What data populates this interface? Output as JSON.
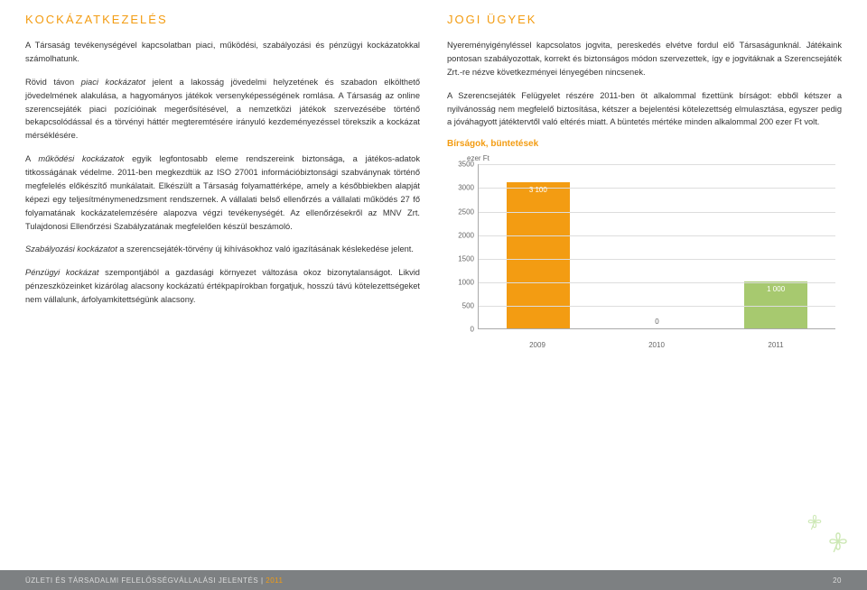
{
  "left": {
    "heading": "KOCKÁZATKEZELÉS",
    "p1a": "A Társaság tevékenységével kapcsolatban piaci, működési, szabályozási és pénzügyi kockázatokkal számolhatunk.",
    "p2a": "Rövid távon ",
    "p2em": "piaci kockázatot",
    "p2b": " jelent a lakosság jövedelmi helyzetének és szabadon elkölthető jövedelmének alakulása, a hagyományos játékok versenyképességének romlása. A Társaság az online szerencsejáték piaci pozícióinak megerősítésével, a nemzetközi játékok szervezésébe történő bekapcsolódással és a törvényi háttér megteremtésére irányuló kezdeményezéssel törekszik a kockázat mérséklésére.",
    "p3a": "A ",
    "p3em": "működési kockázatok",
    "p3b": " egyik legfontosabb eleme rendszereink biztonsága, a játékos-adatok titkosságának védelme. 2011-ben megkezdtük az ISO 27001 információbiztonsági szabványnak történő megfelelés előkészítő munkálatait. Elkészült a Társaság folyamattérképe, amely a későbbiekben alapját képezi egy teljesítménymenedzsment rendszernek. A vállalati belső ellenőrzés a vállalati működés 27 fő folyamatának kockázatelemzésére alapozva végzi tevékenységét. Az ellenőrzésekről az MNV Zrt. Tulajdonosi Ellenőrzési Szabályzatának megfelelően készül beszámoló.",
    "p4em": "Szabályozási kockázatot",
    "p4b": " a szerencsejáték-törvény új kihívásokhoz való igazításának késlekedése jelent.",
    "p5em": "Pénzügyi kockázat",
    "p5b": " szempontjából a gazdasági környezet változása okoz bizonytalanságot. Likvid pénzeszközeinket kizárólag alacsony kockázatú értékpapírokban forgatjuk, hosszú távú kötelezettségeket nem vállalunk, árfolyamkitettségünk alacsony."
  },
  "right": {
    "heading": "JOGI ÜGYEK",
    "p1": "Nyereményigényléssel kapcsolatos jogvita, pereskedés elvétve fordul elő Társaságunknál. Játékaink pontosan szabályozottak, korrekt és biztonságos módon szervezettek, így e jogvitáknak a Szerencsejáték Zrt.-re nézve következményei lényegében nincsenek.",
    "p2": "A Szerencsejáték Felügyelet részére 2011-ben öt alkalommal fizettünk bírságot: ebből kétszer a nyilvánosság nem megfelelő biztosítása, kétszer a bejelentési kötelezettség elmulasztása, egyszer pedig a jóváhagyott játéktervtől való eltérés miatt. A büntetés mértéke minden alkalommal 200 ezer Ft volt.",
    "chart_title": "Bírságok, büntetések",
    "unit": "ezer Ft"
  },
  "chart": {
    "type": "bar",
    "ymin": 0,
    "ymax": 3500,
    "ystep": 500,
    "yticks": [
      0,
      500,
      1000,
      1500,
      2000,
      2500,
      3000,
      3500
    ],
    "categories": [
      "2009",
      "2010",
      "2011"
    ],
    "values": [
      3100,
      0,
      1000
    ],
    "value_labels": [
      "3 100",
      "0",
      "1 000"
    ],
    "bar_colors": [
      "#f39c12",
      "#a7c96f",
      "#a7c96f"
    ],
    "grid_color": "#dddddd",
    "axis_color": "#aaaaaa",
    "text_color": "#666666"
  },
  "footer": {
    "left_a": "ÜZLETI ÉS TÁRSADALMI FELELŐSSÉGVÁLLALÁSI JELENTÉS",
    "left_b": "| ",
    "year": "2011",
    "page": "20"
  }
}
